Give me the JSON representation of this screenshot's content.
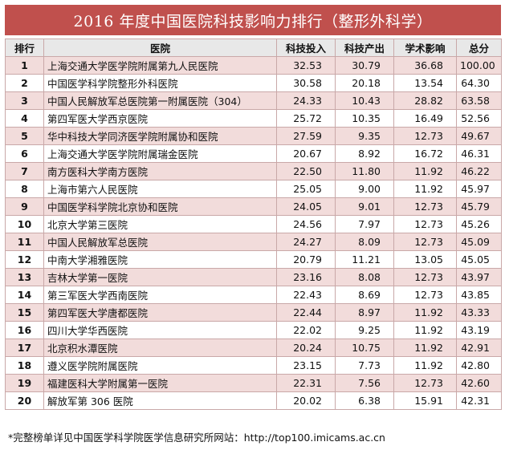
{
  "title": "2016 年度中国医院科技影响力排行（整形外科学）",
  "columns": [
    "排行",
    "医院",
    "科技投入",
    "科技产出",
    "学术影响",
    "总分"
  ],
  "rows": [
    {
      "rank": "1",
      "name": "上海交通大学医学院附属第九人民医院",
      "input": "32.53",
      "output": "30.79",
      "impact": "36.68",
      "total": "100.00"
    },
    {
      "rank": "2",
      "name": "中国医学科学院整形外科医院",
      "input": "30.58",
      "output": "20.18",
      "impact": "13.54",
      "total": "64.30"
    },
    {
      "rank": "3",
      "name": "中国人民解放军总医院第一附属医院（304）",
      "input": "24.33",
      "output": "10.43",
      "impact": "28.82",
      "total": "63.58"
    },
    {
      "rank": "4",
      "name": "第四军医大学西京医院",
      "input": "25.72",
      "output": "10.35",
      "impact": "16.49",
      "total": "52.56"
    },
    {
      "rank": "5",
      "name": "华中科技大学同济医学院附属协和医院",
      "input": "27.59",
      "output": "9.35",
      "impact": "12.73",
      "total": "49.67"
    },
    {
      "rank": "6",
      "name": "上海交通大学医学院附属瑞金医院",
      "input": "20.67",
      "output": "8.92",
      "impact": "16.72",
      "total": "46.31"
    },
    {
      "rank": "7",
      "name": "南方医科大学南方医院",
      "input": "22.50",
      "output": "11.80",
      "impact": "11.92",
      "total": "46.22"
    },
    {
      "rank": "8",
      "name": "上海市第六人民医院",
      "input": "25.05",
      "output": "9.00",
      "impact": "11.92",
      "total": "45.97"
    },
    {
      "rank": "9",
      "name": "中国医学科学院北京协和医院",
      "input": "24.05",
      "output": "9.01",
      "impact": "12.73",
      "total": "45.79"
    },
    {
      "rank": "10",
      "name": "北京大学第三医院",
      "input": "24.56",
      "output": "7.97",
      "impact": "12.73",
      "total": "45.26"
    },
    {
      "rank": "11",
      "name": "中国人民解放军总医院",
      "input": "24.27",
      "output": "8.09",
      "impact": "12.73",
      "total": "45.09"
    },
    {
      "rank": "12",
      "name": "中南大学湘雅医院",
      "input": "20.79",
      "output": "11.21",
      "impact": "13.05",
      "total": "45.05"
    },
    {
      "rank": "13",
      "name": "吉林大学第一医院",
      "input": "23.16",
      "output": "8.08",
      "impact": "12.73",
      "total": "43.97"
    },
    {
      "rank": "14",
      "name": "第三军医大学西南医院",
      "input": "22.43",
      "output": "8.69",
      "impact": "12.73",
      "total": "43.85"
    },
    {
      "rank": "15",
      "name": "第四军医大学唐都医院",
      "input": "22.44",
      "output": "8.97",
      "impact": "11.92",
      "total": "43.33"
    },
    {
      "rank": "16",
      "name": "四川大学华西医院",
      "input": "22.02",
      "output": "9.25",
      "impact": "11.92",
      "total": "43.19"
    },
    {
      "rank": "17",
      "name": "北京积水潭医院",
      "input": "20.24",
      "output": "10.75",
      "impact": "11.92",
      "total": "42.91"
    },
    {
      "rank": "18",
      "name": "遵义医学院附属医院",
      "input": "23.15",
      "output": "7.73",
      "impact": "11.92",
      "total": "42.80"
    },
    {
      "rank": "19",
      "name": "福建医科大学附属第一医院",
      "input": "22.31",
      "output": "7.56",
      "impact": "12.73",
      "total": "42.60"
    },
    {
      "rank": "20",
      "name": "解放军第 306 医院",
      "input": "20.02",
      "output": "6.38",
      "impact": "15.91",
      "total": "42.31"
    }
  ],
  "footnote": "*完整榜单详见中国医学科学院医学信息研究所网站：http://top100.imicams.ac.cn",
  "colors": {
    "title_bg": "#c0504d",
    "row_alt_bg": "#f2dcdb",
    "header_bg": "#e8e8e8"
  }
}
